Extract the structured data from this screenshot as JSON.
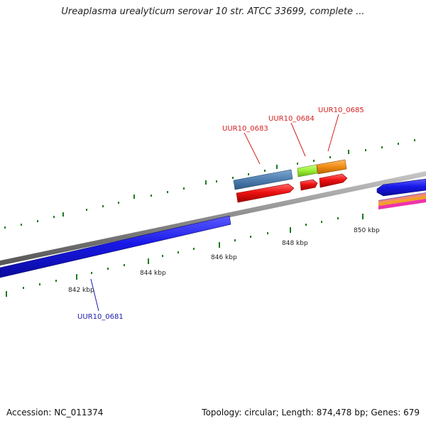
{
  "title": "Ureaplasma urealyticum serovar 10 str. ATCC 33699, complete ...",
  "footer": {
    "accession": "Accession: NC_011374",
    "summary": "Topology: circular; Length: 874,478 bp; Genes: 679"
  },
  "ticks": [
    {
      "label": "842 kbp"
    },
    {
      "label": "844 kbp"
    },
    {
      "label": "846 kbp"
    },
    {
      "label": "848 kbp"
    },
    {
      "label": "850 kbp"
    }
  ],
  "gene_labels": [
    {
      "name": "UUR10_0681",
      "color": "#1a1aa8"
    },
    {
      "name": "UUR10_0683",
      "color": "#d42020"
    },
    {
      "name": "UUR10_0684",
      "color": "#d42020"
    },
    {
      "name": "UUR10_0685",
      "color": "#d42020"
    }
  ],
  "colors": {
    "backbone": "#8a8a8a",
    "forward_strand": "#1818e8",
    "gene_red": "#ee1111",
    "gene_steelblue": "#4f7fb0",
    "gene_lime": "#99ee33",
    "gene_orange": "#f08c14",
    "tick_green": "#1e7a1e"
  }
}
